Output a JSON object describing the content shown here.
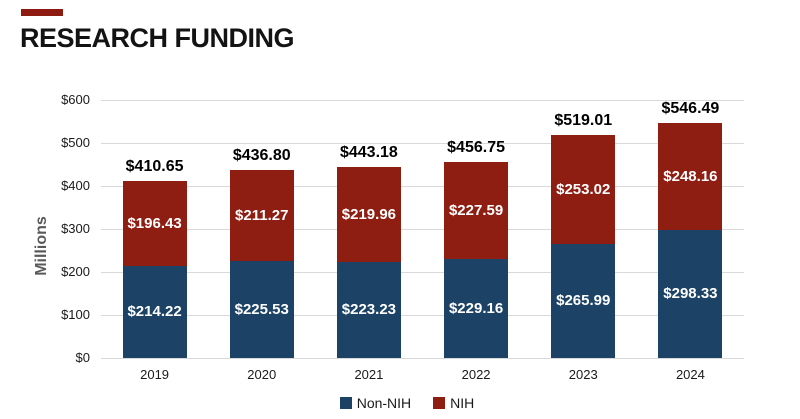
{
  "page": {
    "title": "RESEARCH FUNDING"
  },
  "colors": {
    "accent_bar": "#8E1B12",
    "non_nih": "#1C4365",
    "nih": "#8E1D12",
    "gridline": "#D9D9D9",
    "axis_text": "#1a1a1a",
    "y_axis_title": "#595959"
  },
  "chart_data": {
    "type": "bar",
    "stacked": true,
    "title": "RESEARCH FUNDING",
    "ylabel": "Millions",
    "xlabel": "",
    "ylim": [
      0,
      600
    ],
    "ytick_values": [
      0,
      100,
      200,
      300,
      400,
      500,
      600
    ],
    "ytick_labels": [
      "$0",
      "$100",
      "$200",
      "$300",
      "$400",
      "$500",
      "$600"
    ],
    "grid": true,
    "legend_position": "bottom",
    "categories": [
      "2019",
      "2020",
      "2021",
      "2022",
      "2023",
      "2024"
    ],
    "series": [
      {
        "name": "Non-NIH",
        "color": "#1C4365",
        "values": [
          214.22,
          225.53,
          223.23,
          229.16,
          265.99,
          298.33
        ]
      },
      {
        "name": "NIH",
        "color": "#8E1D12",
        "values": [
          196.43,
          211.27,
          219.96,
          227.59,
          253.02,
          248.16
        ]
      }
    ],
    "totals": [
      410.65,
      436.8,
      443.18,
      456.75,
      519.01,
      546.49
    ],
    "value_prefix": "$"
  },
  "legend": {
    "items": [
      {
        "label": "Non-NIH",
        "color": "#1C4365"
      },
      {
        "label": "NIH",
        "color": "#8E1D12"
      }
    ]
  }
}
